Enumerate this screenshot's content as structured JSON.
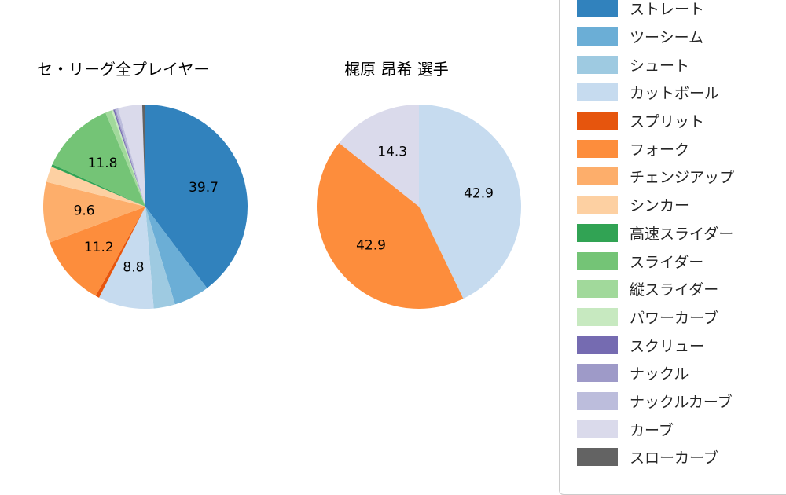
{
  "titles": {
    "left": "セ・リーグ全プレイヤー",
    "right": "梶原 昂希 選手"
  },
  "legend": {
    "items": [
      {
        "label": "ストレート",
        "color": "#3182bd"
      },
      {
        "label": "ツーシーム",
        "color": "#6baed6"
      },
      {
        "label": "シュート",
        "color": "#9ecae1"
      },
      {
        "label": "カットボール",
        "color": "#c6dbef"
      },
      {
        "label": "スプリット",
        "color": "#e6550d"
      },
      {
        "label": "フォーク",
        "color": "#fd8d3c"
      },
      {
        "label": "チェンジアップ",
        "color": "#fdae6b"
      },
      {
        "label": "シンカー",
        "color": "#fdd0a2"
      },
      {
        "label": "高速スライダー",
        "color": "#31a354"
      },
      {
        "label": "スライダー",
        "color": "#74c476"
      },
      {
        "label": "縦スライダー",
        "color": "#a1d99b"
      },
      {
        "label": "パワーカーブ",
        "color": "#c7e9c0"
      },
      {
        "label": "スクリュー",
        "color": "#756bb1"
      },
      {
        "label": "ナックル",
        "color": "#9e9ac8"
      },
      {
        "label": "ナックルカーブ",
        "color": "#bcbddc"
      },
      {
        "label": "カーブ",
        "color": "#dadaeb"
      },
      {
        "label": "スローカーブ",
        "color": "#636363"
      }
    ]
  },
  "chart_data": [
    {
      "type": "pie",
      "title": "セ・リーグ全プレイヤー",
      "unit": "percent",
      "start_angle_deg": 90,
      "direction": "clockwise",
      "label_distance": 0.6,
      "slices": [
        {
          "name": "ストレート",
          "value": 39.7,
          "label": "39.7",
          "color": "#3182bd"
        },
        {
          "name": "ツーシーム",
          "value": 5.6,
          "label": "",
          "color": "#6baed6"
        },
        {
          "name": "シュート",
          "value": 3.4,
          "label": "",
          "color": "#9ecae1"
        },
        {
          "name": "カットボール",
          "value": 8.8,
          "label": "8.8",
          "color": "#c6dbef"
        },
        {
          "name": "スプリット",
          "value": 0.6,
          "label": "",
          "color": "#e6550d"
        },
        {
          "name": "フォーク",
          "value": 11.2,
          "label": "11.2",
          "color": "#fd8d3c"
        },
        {
          "name": "チェンジアップ",
          "value": 9.6,
          "label": "9.6",
          "color": "#fdae6b"
        },
        {
          "name": "シンカー",
          "value": 2.5,
          "label": "",
          "color": "#fdd0a2"
        },
        {
          "name": "高速スライダー",
          "value": 0.4,
          "label": "",
          "color": "#31a354"
        },
        {
          "name": "スライダー",
          "value": 11.8,
          "label": "11.8",
          "color": "#74c476"
        },
        {
          "name": "縦スライダー",
          "value": 1.0,
          "label": "",
          "color": "#a1d99b"
        },
        {
          "name": "パワーカーブ",
          "value": 0.3,
          "label": "",
          "color": "#c7e9c0"
        },
        {
          "name": "スクリュー",
          "value": 0.2,
          "label": "",
          "color": "#756bb1"
        },
        {
          "name": "ナックル",
          "value": 0.2,
          "label": "",
          "color": "#9e9ac8"
        },
        {
          "name": "ナックルカーブ",
          "value": 0.4,
          "label": "",
          "color": "#bcbddc"
        },
        {
          "name": "カーブ",
          "value": 3.8,
          "label": "",
          "color": "#dadaeb"
        },
        {
          "name": "スローカーブ",
          "value": 0.5,
          "label": "",
          "color": "#636363"
        }
      ]
    },
    {
      "type": "pie",
      "title": "梶原 昂希 選手",
      "unit": "percent",
      "start_angle_deg": 90,
      "direction": "clockwise",
      "label_distance": 0.6,
      "slices": [
        {
          "name": "カットボール",
          "value": 42.9,
          "label": "42.9",
          "color": "#c6dbef"
        },
        {
          "name": "フォーク",
          "value": 42.9,
          "label": "42.9",
          "color": "#fd8d3c"
        },
        {
          "name": "カーブ",
          "value": 14.3,
          "label": "14.3",
          "color": "#dadaeb"
        }
      ]
    }
  ]
}
